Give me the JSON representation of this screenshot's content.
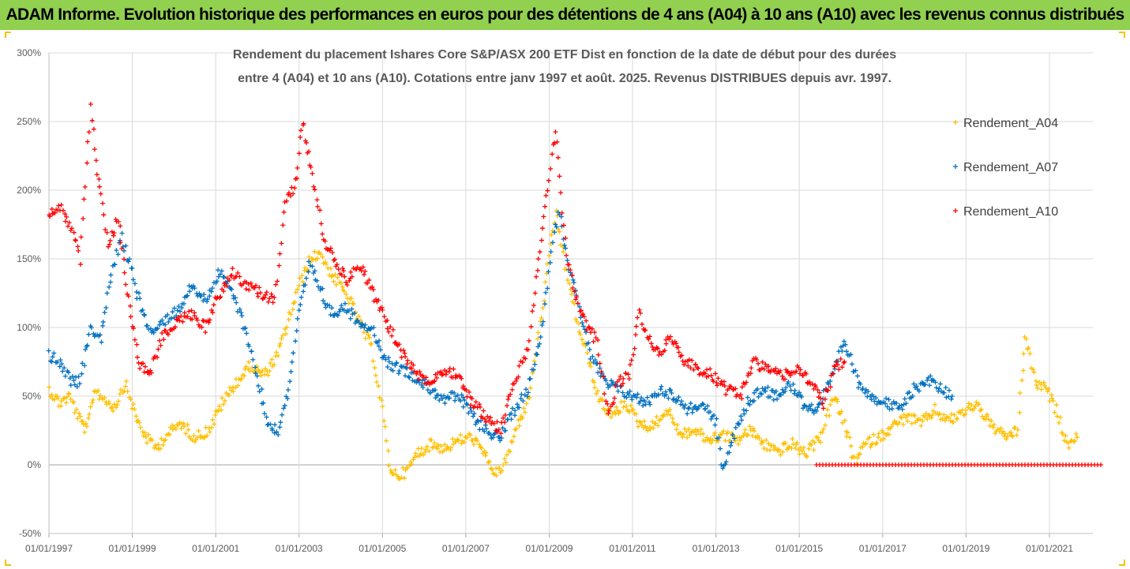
{
  "header": {
    "title": "ADAM Informe. Evolution historique des performances en euros pour des détentions de 4 ans (A04) à 10 ans (A10) avec les revenus connus distribués"
  },
  "chart_data": {
    "type": "scatter",
    "title": "",
    "subtitle_lines": [
      "Rendement du placement Ishares Core S&P/ASX 200 ETF Dist en fonction de la date de début pour des durées",
      "entre 4 (A04) et 10 ans (A10). Cotations entre janv 1997 et août. 2025. Revenus DISTRIBUES depuis avr. 1997."
    ],
    "xlabel": "",
    "ylabel": "",
    "x_axis": {
      "type": "date",
      "range": [
        "1997-01-01",
        "2022-05-01"
      ],
      "tick_labels": [
        "01/01/1997",
        "01/01/1999",
        "01/01/2001",
        "01/01/2003",
        "01/01/2005",
        "01/01/2007",
        "01/01/2009",
        "01/01/2011",
        "01/01/2013",
        "01/01/2015",
        "01/01/2017",
        "01/01/2019",
        "01/01/2021"
      ]
    },
    "y_axis": {
      "range": [
        -0.5,
        3.0
      ],
      "tick_labels": [
        "-50%",
        "0%",
        "50%",
        "100%",
        "150%",
        "200%",
        "250%",
        "300%"
      ],
      "tick_values": [
        -0.5,
        0,
        0.5,
        1.0,
        1.5,
        2.0,
        2.5,
        3.0
      ]
    },
    "grid": true,
    "legend_position": "right",
    "marker": "+",
    "series": [
      {
        "name": "Rendement_A04",
        "color": "#ffc000",
        "points": [
          [
            "1997-01-01",
            0.55
          ],
          [
            "1997-04-01",
            0.45
          ],
          [
            "1997-07-01",
            0.5
          ],
          [
            "1997-10-01",
            0.32
          ],
          [
            "1997-12-01",
            0.25
          ],
          [
            "1998-02-01",
            0.55
          ],
          [
            "1998-05-01",
            0.48
          ],
          [
            "1998-08-01",
            0.42
          ],
          [
            "1998-11-01",
            0.6
          ],
          [
            "1999-02-01",
            0.35
          ],
          [
            "1999-05-01",
            0.2
          ],
          [
            "1999-08-01",
            0.12
          ],
          [
            "1999-11-01",
            0.22
          ],
          [
            "2000-03-01",
            0.3
          ],
          [
            "2000-07-01",
            0.2
          ],
          [
            "2000-11-01",
            0.25
          ],
          [
            "2001-03-01",
            0.45
          ],
          [
            "2001-07-01",
            0.6
          ],
          [
            "2001-11-01",
            0.72
          ],
          [
            "2002-03-01",
            0.65
          ],
          [
            "2002-07-01",
            0.8
          ],
          [
            "2002-10-01",
            1.05
          ],
          [
            "2003-01-01",
            1.3
          ],
          [
            "2003-04-01",
            1.48
          ],
          [
            "2003-07-01",
            1.55
          ],
          [
            "2003-10-01",
            1.4
          ],
          [
            "2004-01-01",
            1.3
          ],
          [
            "2004-04-01",
            1.18
          ],
          [
            "2004-07-01",
            1.0
          ],
          [
            "2004-10-01",
            0.85
          ],
          [
            "2005-01-01",
            0.4
          ],
          [
            "2005-03-01",
            0.0
          ],
          [
            "2005-05-01",
            -0.08
          ],
          [
            "2005-08-01",
            -0.05
          ],
          [
            "2005-11-01",
            0.08
          ],
          [
            "2006-03-01",
            0.15
          ],
          [
            "2006-07-01",
            0.12
          ],
          [
            "2006-11-01",
            0.18
          ],
          [
            "2007-03-01",
            0.2
          ],
          [
            "2007-07-01",
            0.05
          ],
          [
            "2007-10-01",
            -0.08
          ],
          [
            "2008-01-01",
            0.05
          ],
          [
            "2008-04-01",
            0.3
          ],
          [
            "2008-07-01",
            0.45
          ],
          [
            "2008-10-01",
            0.95
          ],
          [
            "2009-01-01",
            1.5
          ],
          [
            "2009-03-01",
            1.85
          ],
          [
            "2009-06-01",
            1.4
          ],
          [
            "2009-09-01",
            1.05
          ],
          [
            "2009-12-01",
            0.8
          ],
          [
            "2010-03-01",
            0.5
          ],
          [
            "2010-07-01",
            0.35
          ],
          [
            "2010-11-01",
            0.45
          ],
          [
            "2011-03-01",
            0.3
          ],
          [
            "2011-07-01",
            0.28
          ],
          [
            "2011-11-01",
            0.4
          ],
          [
            "2012-03-01",
            0.22
          ],
          [
            "2012-07-01",
            0.25
          ],
          [
            "2012-11-01",
            0.18
          ],
          [
            "2013-03-01",
            0.22
          ],
          [
            "2013-07-01",
            0.18
          ],
          [
            "2013-11-01",
            0.25
          ],
          [
            "2014-03-01",
            0.15
          ],
          [
            "2014-07-01",
            0.1
          ],
          [
            "2014-11-01",
            0.15
          ],
          [
            "2015-03-01",
            0.08
          ],
          [
            "2015-07-01",
            0.2
          ],
          [
            "2015-11-01",
            0.5
          ],
          [
            "2016-02-01",
            0.3
          ],
          [
            "2016-05-01",
            0.02
          ],
          [
            "2016-08-01",
            0.15
          ],
          [
            "2016-12-01",
            0.2
          ],
          [
            "2017-04-01",
            0.28
          ],
          [
            "2017-08-01",
            0.35
          ],
          [
            "2017-12-01",
            0.3
          ],
          [
            "2018-04-01",
            0.4
          ],
          [
            "2018-08-01",
            0.32
          ],
          [
            "2018-12-01",
            0.38
          ],
          [
            "2019-04-01",
            0.45
          ],
          [
            "2019-08-01",
            0.3
          ],
          [
            "2019-12-01",
            0.2
          ],
          [
            "2020-04-01",
            0.25
          ],
          [
            "2020-06-01",
            0.95
          ],
          [
            "2020-09-01",
            0.6
          ],
          [
            "2020-12-01",
            0.55
          ],
          [
            "2021-03-01",
            0.4
          ],
          [
            "2021-06-01",
            0.15
          ],
          [
            "2021-09-01",
            0.2
          ]
        ]
      },
      {
        "name": "Rendement_A07",
        "color": "#0070c0",
        "points": [
          [
            "1997-01-01",
            0.8
          ],
          [
            "1997-04-01",
            0.75
          ],
          [
            "1997-07-01",
            0.62
          ],
          [
            "1997-10-01",
            0.6
          ],
          [
            "1998-01-01",
            1.0
          ],
          [
            "1998-04-01",
            0.92
          ],
          [
            "1998-07-01",
            1.4
          ],
          [
            "1998-10-01",
            1.65
          ],
          [
            "1999-01-01",
            1.4
          ],
          [
            "1999-04-01",
            1.1
          ],
          [
            "1999-07-01",
            0.95
          ],
          [
            "1999-10-01",
            1.05
          ],
          [
            "2000-02-01",
            1.12
          ],
          [
            "2000-06-01",
            1.3
          ],
          [
            "2000-10-01",
            1.2
          ],
          [
            "2001-02-01",
            1.4
          ],
          [
            "2001-06-01",
            1.25
          ],
          [
            "2001-10-01",
            0.95
          ],
          [
            "2002-01-01",
            0.65
          ],
          [
            "2002-04-01",
            0.3
          ],
          [
            "2002-07-01",
            0.25
          ],
          [
            "2002-10-01",
            0.55
          ],
          [
            "2003-01-01",
            1.1
          ],
          [
            "2003-04-01",
            1.45
          ],
          [
            "2003-07-01",
            1.3
          ],
          [
            "2003-10-01",
            1.1
          ],
          [
            "2004-02-01",
            1.15
          ],
          [
            "2004-06-01",
            1.05
          ],
          [
            "2004-10-01",
            1.0
          ],
          [
            "2005-02-01",
            0.75
          ],
          [
            "2005-06-01",
            0.7
          ],
          [
            "2005-10-01",
            0.65
          ],
          [
            "2006-03-01",
            0.55
          ],
          [
            "2006-07-01",
            0.48
          ],
          [
            "2006-11-01",
            0.5
          ],
          [
            "2007-03-01",
            0.35
          ],
          [
            "2007-07-01",
            0.25
          ],
          [
            "2007-11-01",
            0.2
          ],
          [
            "2008-03-01",
            0.4
          ],
          [
            "2008-07-01",
            0.55
          ],
          [
            "2008-11-01",
            1.0
          ],
          [
            "2009-02-01",
            1.65
          ],
          [
            "2009-04-01",
            1.85
          ],
          [
            "2009-07-01",
            1.4
          ],
          [
            "2009-10-01",
            1.1
          ],
          [
            "2010-01-01",
            0.8
          ],
          [
            "2010-05-01",
            0.6
          ],
          [
            "2010-09-01",
            0.55
          ],
          [
            "2011-01-01",
            0.5
          ],
          [
            "2011-05-01",
            0.45
          ],
          [
            "2011-09-01",
            0.55
          ],
          [
            "2012-01-01",
            0.5
          ],
          [
            "2012-05-01",
            0.4
          ],
          [
            "2012-09-01",
            0.45
          ],
          [
            "2013-01-01",
            0.3
          ],
          [
            "2013-03-01",
            -0.05
          ],
          [
            "2013-06-01",
            0.2
          ],
          [
            "2013-10-01",
            0.45
          ],
          [
            "2014-02-01",
            0.55
          ],
          [
            "2014-06-01",
            0.5
          ],
          [
            "2014-10-01",
            0.6
          ],
          [
            "2015-02-01",
            0.45
          ],
          [
            "2015-06-01",
            0.4
          ],
          [
            "2015-10-01",
            0.6
          ],
          [
            "2016-02-01",
            0.9
          ],
          [
            "2016-06-01",
            0.6
          ],
          [
            "2016-10-01",
            0.5
          ],
          [
            "2017-02-01",
            0.45
          ],
          [
            "2017-06-01",
            0.4
          ],
          [
            "2017-10-01",
            0.55
          ],
          [
            "2018-02-01",
            0.62
          ],
          [
            "2018-06-01",
            0.55
          ],
          [
            "2018-09-01",
            0.5
          ]
        ]
      },
      {
        "name": "Rendement_A10",
        "color": "#ff0000",
        "points": [
          [
            "1997-01-01",
            1.82
          ],
          [
            "1997-04-01",
            1.9
          ],
          [
            "1997-07-01",
            1.75
          ],
          [
            "1997-10-01",
            1.5
          ],
          [
            "1998-01-01",
            2.6
          ],
          [
            "1998-03-01",
            2.15
          ],
          [
            "1998-06-01",
            1.6
          ],
          [
            "1998-09-01",
            1.8
          ],
          [
            "1998-12-01",
            1.2
          ],
          [
            "1999-03-01",
            0.75
          ],
          [
            "1999-06-01",
            0.65
          ],
          [
            "1999-10-01",
            0.95
          ],
          [
            "2000-02-01",
            1.05
          ],
          [
            "2000-06-01",
            1.1
          ],
          [
            "2000-10-01",
            1.0
          ],
          [
            "2001-02-01",
            1.25
          ],
          [
            "2001-06-01",
            1.4
          ],
          [
            "2001-10-01",
            1.3
          ],
          [
            "2002-02-01",
            1.25
          ],
          [
            "2002-06-01",
            1.2
          ],
          [
            "2002-09-01",
            1.9
          ],
          [
            "2002-12-01",
            2.05
          ],
          [
            "2003-02-01",
            2.5
          ],
          [
            "2003-05-01",
            2.1
          ],
          [
            "2003-08-01",
            1.65
          ],
          [
            "2003-11-01",
            1.5
          ],
          [
            "2004-03-01",
            1.35
          ],
          [
            "2004-07-01",
            1.45
          ],
          [
            "2004-11-01",
            1.2
          ],
          [
            "2005-03-01",
            1.0
          ],
          [
            "2005-07-01",
            0.8
          ],
          [
            "2005-11-01",
            0.65
          ],
          [
            "2006-03-01",
            0.6
          ],
          [
            "2006-07-01",
            0.7
          ],
          [
            "2006-11-01",
            0.65
          ],
          [
            "2007-03-01",
            0.45
          ],
          [
            "2007-07-01",
            0.35
          ],
          [
            "2007-11-01",
            0.25
          ],
          [
            "2008-03-01",
            0.6
          ],
          [
            "2008-07-01",
            0.85
          ],
          [
            "2008-10-01",
            1.5
          ],
          [
            "2009-01-01",
            2.1
          ],
          [
            "2009-03-01",
            2.45
          ],
          [
            "2009-06-01",
            1.5
          ],
          [
            "2009-09-01",
            1.2
          ],
          [
            "2009-12-01",
            1.0
          ],
          [
            "2010-03-01",
            0.9
          ],
          [
            "2010-06-01",
            0.35
          ],
          [
            "2010-09-01",
            0.6
          ],
          [
            "2010-12-01",
            0.65
          ],
          [
            "2011-03-01",
            1.1
          ],
          [
            "2011-06-01",
            0.9
          ],
          [
            "2011-09-01",
            0.8
          ],
          [
            "2011-12-01",
            0.95
          ],
          [
            "2012-04-01",
            0.75
          ],
          [
            "2012-08-01",
            0.7
          ],
          [
            "2012-12-01",
            0.65
          ],
          [
            "2013-04-01",
            0.55
          ],
          [
            "2013-08-01",
            0.5
          ],
          [
            "2013-12-01",
            0.75
          ],
          [
            "2014-04-01",
            0.7
          ],
          [
            "2014-08-01",
            0.65
          ],
          [
            "2014-12-01",
            0.7
          ],
          [
            "2015-04-01",
            0.6
          ],
          [
            "2015-08-01",
            0.45
          ],
          [
            "2015-11-01",
            0.7
          ],
          [
            "2016-02-01",
            0.75
          ]
        ],
        "flat_segment": {
          "from": "2015-06-01",
          "to": "2022-04-01",
          "value": 0.0
        }
      }
    ]
  }
}
